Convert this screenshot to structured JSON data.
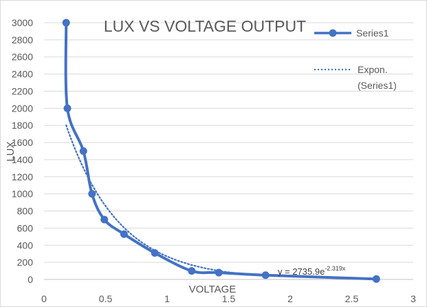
{
  "chart_data": {
    "type": "line",
    "title": "LUX VS VOLTAGE OUTPUT",
    "xlabel": "VOLTAGE",
    "ylabel": "LUX",
    "xlim": [
      0,
      3
    ],
    "ylim": [
      0,
      3000
    ],
    "x_ticks": [
      "0",
      "0.5",
      "1",
      "1.5",
      "2",
      "2.5",
      "3"
    ],
    "y_ticks": [
      "0",
      "200",
      "400",
      "600",
      "800",
      "1000",
      "1200",
      "1400",
      "1600",
      "1800",
      "2000",
      "2200",
      "2400",
      "2600",
      "2800",
      "3000"
    ],
    "grid": "horizontal",
    "legend_position": "right",
    "series": [
      {
        "name": "Series1",
        "color": "#4472c4",
        "x": [
          0.18,
          0.19,
          0.32,
          0.39,
          0.49,
          0.65,
          0.9,
          1.2,
          1.42,
          1.8,
          2.7
        ],
        "y": [
          3000,
          2000,
          1500,
          1000,
          700,
          530,
          310,
          100,
          80,
          50,
          5
        ]
      }
    ],
    "trendline": {
      "name": "Expon. (Series1)",
      "name_line1": "Expon.",
      "name_line2": "(Series1)",
      "color": "#4472c4",
      "a": 2735.9,
      "b": -2.319,
      "x_range": [
        0.18,
        1.8
      ],
      "equation_base": "y = 2735.9e",
      "equation_exp": "-2.319x"
    }
  }
}
